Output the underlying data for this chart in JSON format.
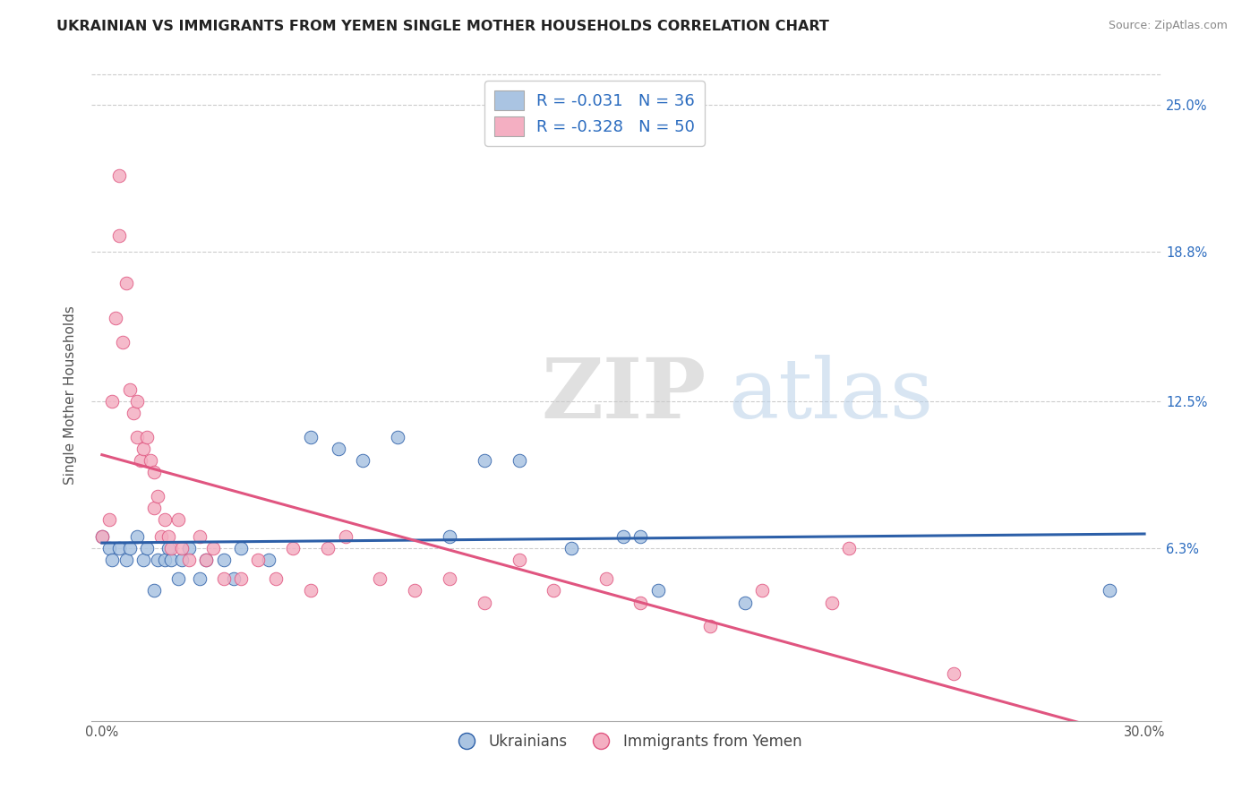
{
  "title": "UKRAINIAN VS IMMIGRANTS FROM YEMEN SINGLE MOTHER HOUSEHOLDS CORRELATION CHART",
  "source": "Source: ZipAtlas.com",
  "ylabel": "Single Mother Households",
  "xmin": 0.0,
  "xmax": 0.3,
  "ymin": -0.01,
  "ymax": 0.265,
  "yticks": [
    0.0,
    0.063,
    0.125,
    0.188,
    0.25
  ],
  "ytick_labels_right": [
    "",
    "6.3%",
    "12.5%",
    "18.8%",
    "25.0%"
  ],
  "xtick_labels": [
    "0.0%",
    "30.0%"
  ],
  "legend_labels": [
    "Ukrainians",
    "Immigrants from Yemen"
  ],
  "r_blue": -0.031,
  "n_blue": 36,
  "r_pink": -0.328,
  "n_pink": 50,
  "blue_color": "#aac4e2",
  "pink_color": "#f4afc2",
  "blue_line_color": "#2c5fa8",
  "pink_line_color": "#e05580",
  "blue_scatter": [
    [
      0.0,
      0.068
    ],
    [
      0.002,
      0.063
    ],
    [
      0.003,
      0.058
    ],
    [
      0.005,
      0.063
    ],
    [
      0.007,
      0.058
    ],
    [
      0.008,
      0.063
    ],
    [
      0.01,
      0.068
    ],
    [
      0.012,
      0.058
    ],
    [
      0.013,
      0.063
    ],
    [
      0.015,
      0.045
    ],
    [
      0.016,
      0.058
    ],
    [
      0.018,
      0.058
    ],
    [
      0.019,
      0.063
    ],
    [
      0.02,
      0.058
    ],
    [
      0.022,
      0.05
    ],
    [
      0.023,
      0.058
    ],
    [
      0.025,
      0.063
    ],
    [
      0.028,
      0.05
    ],
    [
      0.03,
      0.058
    ],
    [
      0.035,
      0.058
    ],
    [
      0.038,
      0.05
    ],
    [
      0.04,
      0.063
    ],
    [
      0.048,
      0.058
    ],
    [
      0.06,
      0.11
    ],
    [
      0.068,
      0.105
    ],
    [
      0.075,
      0.1
    ],
    [
      0.085,
      0.11
    ],
    [
      0.1,
      0.068
    ],
    [
      0.11,
      0.1
    ],
    [
      0.12,
      0.1
    ],
    [
      0.135,
      0.063
    ],
    [
      0.15,
      0.068
    ],
    [
      0.155,
      0.068
    ],
    [
      0.16,
      0.045
    ],
    [
      0.185,
      0.04
    ],
    [
      0.29,
      0.045
    ]
  ],
  "pink_scatter": [
    [
      0.0,
      0.068
    ],
    [
      0.002,
      0.075
    ],
    [
      0.003,
      0.125
    ],
    [
      0.004,
      0.16
    ],
    [
      0.005,
      0.195
    ],
    [
      0.005,
      0.22
    ],
    [
      0.006,
      0.15
    ],
    [
      0.007,
      0.175
    ],
    [
      0.008,
      0.13
    ],
    [
      0.009,
      0.12
    ],
    [
      0.01,
      0.125
    ],
    [
      0.01,
      0.11
    ],
    [
      0.011,
      0.1
    ],
    [
      0.012,
      0.105
    ],
    [
      0.013,
      0.11
    ],
    [
      0.014,
      0.1
    ],
    [
      0.015,
      0.095
    ],
    [
      0.015,
      0.08
    ],
    [
      0.016,
      0.085
    ],
    [
      0.017,
      0.068
    ],
    [
      0.018,
      0.075
    ],
    [
      0.019,
      0.068
    ],
    [
      0.02,
      0.063
    ],
    [
      0.022,
      0.075
    ],
    [
      0.023,
      0.063
    ],
    [
      0.025,
      0.058
    ],
    [
      0.028,
      0.068
    ],
    [
      0.03,
      0.058
    ],
    [
      0.032,
      0.063
    ],
    [
      0.035,
      0.05
    ],
    [
      0.04,
      0.05
    ],
    [
      0.045,
      0.058
    ],
    [
      0.05,
      0.05
    ],
    [
      0.055,
      0.063
    ],
    [
      0.06,
      0.045
    ],
    [
      0.065,
      0.063
    ],
    [
      0.07,
      0.068
    ],
    [
      0.08,
      0.05
    ],
    [
      0.09,
      0.045
    ],
    [
      0.1,
      0.05
    ],
    [
      0.11,
      0.04
    ],
    [
      0.12,
      0.058
    ],
    [
      0.13,
      0.045
    ],
    [
      0.145,
      0.05
    ],
    [
      0.155,
      0.04
    ],
    [
      0.175,
      0.03
    ],
    [
      0.19,
      0.045
    ],
    [
      0.21,
      0.04
    ],
    [
      0.215,
      0.063
    ],
    [
      0.245,
      0.01
    ]
  ],
  "watermark_zip": "ZIP",
  "watermark_atlas": "atlas",
  "title_fontsize": 11.5,
  "axis_label_fontsize": 11,
  "tick_fontsize": 10.5,
  "legend_fontsize": 13
}
